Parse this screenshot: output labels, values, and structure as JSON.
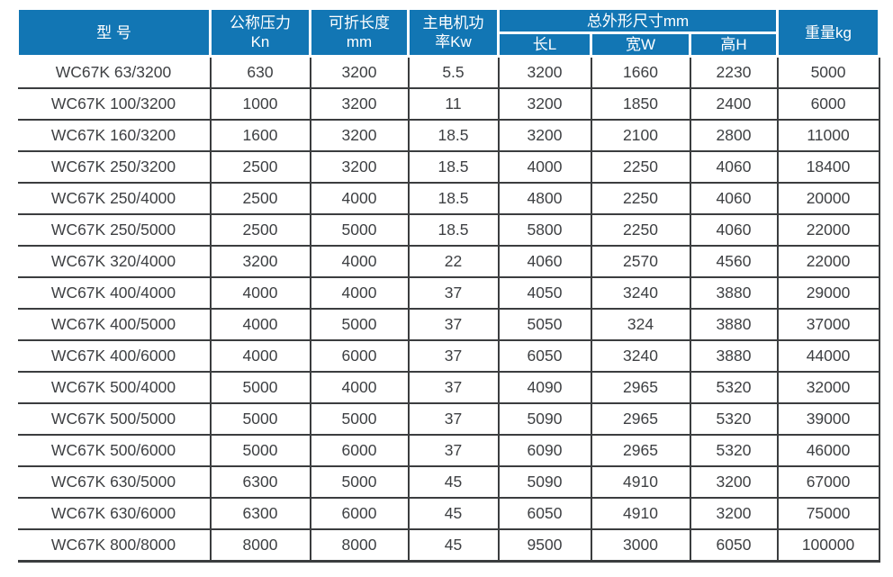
{
  "table": {
    "title_semantic": "press-brake-specification-table",
    "headers": {
      "model": "型 号",
      "pressure_line1": "公称压力",
      "pressure_line2": "Kn",
      "length_line1": "可折长度",
      "length_line2": "mm",
      "power_line1": "主电机功",
      "power_line2": "率Kw",
      "dimensions_group": "总外形尺寸mm",
      "dim_length": "长L",
      "dim_width": "宽W",
      "dim_height": "高H",
      "weight": "重量kg"
    },
    "rows": [
      [
        "WC67K 63/3200",
        "630",
        "3200",
        "5.5",
        "3200",
        "1660",
        "2230",
        "5000"
      ],
      [
        "WC67K 100/3200",
        "1000",
        "3200",
        "11",
        "3200",
        "1850",
        "2400",
        "6000"
      ],
      [
        "WC67K 160/3200",
        "1600",
        "3200",
        "18.5",
        "3200",
        "2100",
        "2800",
        "11000"
      ],
      [
        "WC67K 250/3200",
        "2500",
        "3200",
        "18.5",
        "4000",
        "2250",
        "4060",
        "18400"
      ],
      [
        "WC67K 250/4000",
        "2500",
        "4000",
        "18.5",
        "4800",
        "2250",
        "4060",
        "20000"
      ],
      [
        "WC67K 250/5000",
        "2500",
        "5000",
        "18.5",
        "5800",
        "2250",
        "4060",
        "22000"
      ],
      [
        "WC67K 320/4000",
        "3200",
        "4000",
        "22",
        "4060",
        "2570",
        "4560",
        "22000"
      ],
      [
        "WC67K 400/4000",
        "4000",
        "4000",
        "37",
        "4050",
        "3240",
        "3880",
        "29000"
      ],
      [
        "WC67K 400/5000",
        "4000",
        "5000",
        "37",
        "5050",
        "324",
        "3880",
        "37000"
      ],
      [
        "WC67K 400/6000",
        "4000",
        "6000",
        "37",
        "6050",
        "3240",
        "3880",
        "44000"
      ],
      [
        "WC67K 500/4000",
        "5000",
        "4000",
        "37",
        "4090",
        "2965",
        "5320",
        "32000"
      ],
      [
        "WC67K 500/5000",
        "5000",
        "5000",
        "37",
        "5090",
        "2965",
        "5320",
        "39000"
      ],
      [
        "WC67K 500/6000",
        "5000",
        "6000",
        "37",
        "6090",
        "2965",
        "5320",
        "46000"
      ],
      [
        "WC67K 630/5000",
        "6300",
        "5000",
        "45",
        "5090",
        "4910",
        "3200",
        "67000"
      ],
      [
        "WC67K 630/6000",
        "6300",
        "6000",
        "45",
        "6050",
        "4910",
        "3200",
        "75000"
      ],
      [
        "WC67K 800/8000",
        "8000",
        "8000",
        "45",
        "9500",
        "3000",
        "6050",
        "100000"
      ]
    ],
    "colors": {
      "header_bg": "#1276b4",
      "header_text": "#ffffff",
      "grid_line": "#3b3d3f",
      "cell_text": "#3e4043",
      "background": "#ffffff"
    }
  }
}
